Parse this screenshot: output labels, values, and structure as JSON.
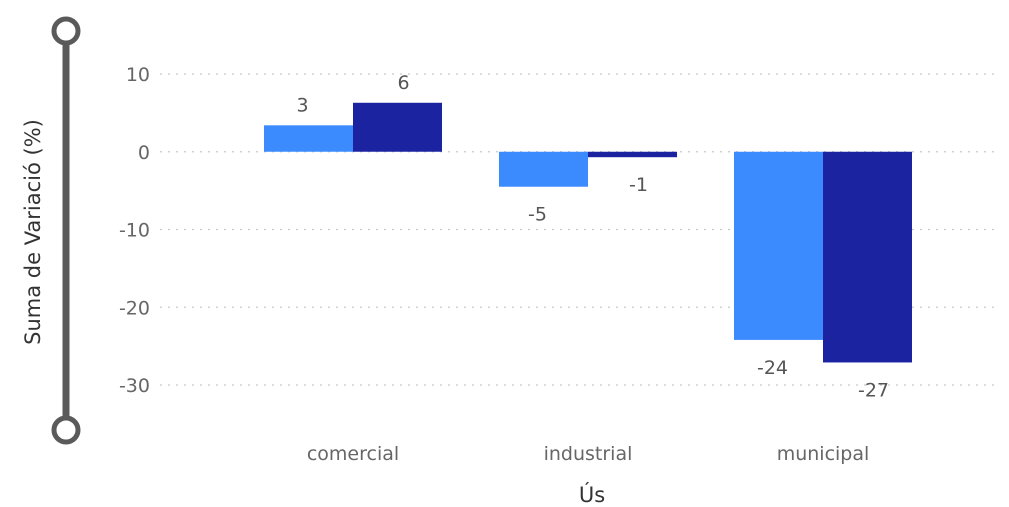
{
  "colors": {
    "series_light": "#3b8bff",
    "series_dark": "#1b23a0",
    "slider": "#5a5a5a"
  },
  "chart_data": {
    "type": "bar",
    "categories": [
      "comercial",
      "industrial",
      "municipal"
    ],
    "series": [
      {
        "values": [
          3.4,
          -4.5,
          -24.2
        ],
        "labels": [
          "3",
          "-5",
          "-24"
        ]
      },
      {
        "values": [
          6.3,
          -0.7,
          -27.1
        ],
        "labels": [
          "6",
          "-1",
          "-27"
        ]
      }
    ],
    "xlabel": "Ús",
    "ylabel": "Suma de Variació (%)",
    "ylim": [
      -30,
      10
    ],
    "yticks": [
      10,
      0,
      -10,
      -20,
      -30
    ],
    "grid": true,
    "legend": "none"
  }
}
